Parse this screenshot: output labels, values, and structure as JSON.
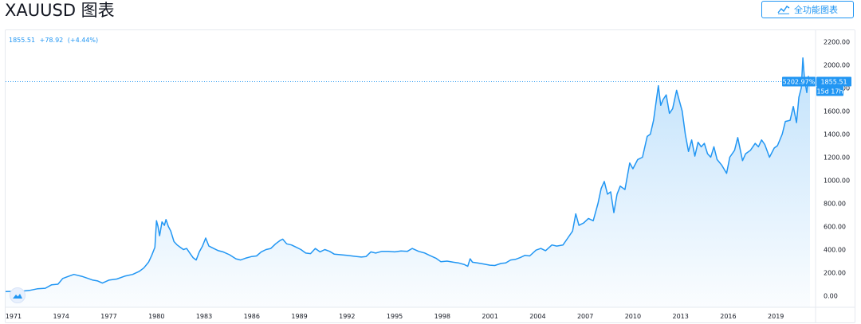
{
  "header": {
    "title": "XAUUSD 图表",
    "fullchart_label": "全功能图表",
    "fullchart_icon": "chart-line-icon"
  },
  "legend": {
    "price": "1855.51",
    "change": "+78.92",
    "change_pct": "(+4.44%)"
  },
  "price_tag": {
    "percent": "5202.97%",
    "price": "1855.51",
    "countdown": "15d 17h"
  },
  "colors": {
    "line": "#2196f3",
    "accent": "#2196f3",
    "axis_text": "#131722",
    "grid": "#e6e9ef"
  },
  "chart_data": {
    "type": "area",
    "series_name": "",
    "x_unit": "year",
    "xlim": [
      1970.5,
      2021.5
    ],
    "ylim": [
      -100,
      2300
    ],
    "x_ticks": [
      "1971",
      "1974",
      "1977",
      "1980",
      "1983",
      "1986",
      "1989",
      "1992",
      "1995",
      "1998",
      "2001",
      "2004",
      "2007",
      "2010",
      "2013",
      "2016",
      "2019"
    ],
    "y_ticks": [
      "2200.00",
      "2000.00",
      "1800.00",
      "1600.00",
      "1400.00",
      "1200.00",
      "1000.00",
      "800.00",
      "600.00",
      "400.00",
      "200.00",
      "0.00"
    ],
    "last_price": 1855.51,
    "points": [
      [
        1970.5,
        36
      ],
      [
        1971.0,
        38
      ],
      [
        1971.6,
        41
      ],
      [
        1972.0,
        46
      ],
      [
        1972.5,
        60
      ],
      [
        1973.0,
        65
      ],
      [
        1973.4,
        95
      ],
      [
        1973.8,
        100
      ],
      [
        1974.1,
        150
      ],
      [
        1974.4,
        165
      ],
      [
        1974.8,
        185
      ],
      [
        1975.0,
        178
      ],
      [
        1975.3,
        168
      ],
      [
        1975.7,
        150
      ],
      [
        1976.0,
        135
      ],
      [
        1976.3,
        128
      ],
      [
        1976.6,
        110
      ],
      [
        1977.0,
        135
      ],
      [
        1977.5,
        145
      ],
      [
        1978.0,
        170
      ],
      [
        1978.5,
        185
      ],
      [
        1978.9,
        210
      ],
      [
        1979.2,
        240
      ],
      [
        1979.5,
        290
      ],
      [
        1979.7,
        350
      ],
      [
        1979.9,
        420
      ],
      [
        1980.0,
        650
      ],
      [
        1980.1,
        600
      ],
      [
        1980.2,
        520
      ],
      [
        1980.35,
        640
      ],
      [
        1980.5,
        610
      ],
      [
        1980.6,
        660
      ],
      [
        1980.75,
        600
      ],
      [
        1980.9,
        560
      ],
      [
        1981.1,
        470
      ],
      [
        1981.3,
        440
      ],
      [
        1981.5,
        420
      ],
      [
        1981.7,
        400
      ],
      [
        1981.9,
        410
      ],
      [
        1982.1,
        370
      ],
      [
        1982.3,
        330
      ],
      [
        1982.5,
        310
      ],
      [
        1982.7,
        380
      ],
      [
        1982.9,
        430
      ],
      [
        1983.1,
        500
      ],
      [
        1983.3,
        430
      ],
      [
        1983.6,
        410
      ],
      [
        1983.9,
        390
      ],
      [
        1984.2,
        380
      ],
      [
        1984.6,
        355
      ],
      [
        1985.0,
        320
      ],
      [
        1985.3,
        310
      ],
      [
        1985.6,
        325
      ],
      [
        1986.0,
        340
      ],
      [
        1986.3,
        345
      ],
      [
        1986.6,
        380
      ],
      [
        1986.9,
        400
      ],
      [
        1987.2,
        410
      ],
      [
        1987.5,
        450
      ],
      [
        1987.8,
        480
      ],
      [
        1987.95,
        490
      ],
      [
        1988.2,
        450
      ],
      [
        1988.5,
        440
      ],
      [
        1988.8,
        420
      ],
      [
        1989.1,
        400
      ],
      [
        1989.4,
        370
      ],
      [
        1989.7,
        365
      ],
      [
        1990.0,
        410
      ],
      [
        1990.3,
        380
      ],
      [
        1990.6,
        400
      ],
      [
        1990.9,
        385
      ],
      [
        1991.2,
        360
      ],
      [
        1991.6,
        355
      ],
      [
        1992.0,
        350
      ],
      [
        1992.3,
        345
      ],
      [
        1992.6,
        340
      ],
      [
        1992.9,
        335
      ],
      [
        1993.2,
        340
      ],
      [
        1993.5,
        380
      ],
      [
        1993.8,
        370
      ],
      [
        1994.2,
        385
      ],
      [
        1994.6,
        385
      ],
      [
        1995.0,
        380
      ],
      [
        1995.4,
        388
      ],
      [
        1995.8,
        385
      ],
      [
        1996.1,
        410
      ],
      [
        1996.5,
        385
      ],
      [
        1996.9,
        370
      ],
      [
        1997.2,
        350
      ],
      [
        1997.6,
        325
      ],
      [
        1997.9,
        295
      ],
      [
        1998.3,
        300
      ],
      [
        1998.7,
        290
      ],
      [
        1999.0,
        285
      ],
      [
        1999.4,
        270
      ],
      [
        1999.6,
        255
      ],
      [
        1999.75,
        320
      ],
      [
        1999.9,
        290
      ],
      [
        2000.2,
        285
      ],
      [
        2000.6,
        275
      ],
      [
        2001.0,
        265
      ],
      [
        2001.3,
        262
      ],
      [
        2001.7,
        280
      ],
      [
        2002.0,
        285
      ],
      [
        2002.3,
        310
      ],
      [
        2002.6,
        315
      ],
      [
        2002.9,
        330
      ],
      [
        2003.2,
        350
      ],
      [
        2003.5,
        345
      ],
      [
        2003.9,
        395
      ],
      [
        2004.2,
        410
      ],
      [
        2004.5,
        390
      ],
      [
        2004.9,
        440
      ],
      [
        2005.2,
        430
      ],
      [
        2005.6,
        440
      ],
      [
        2005.9,
        500
      ],
      [
        2006.2,
        560
      ],
      [
        2006.4,
        710
      ],
      [
        2006.6,
        610
      ],
      [
        2006.9,
        630
      ],
      [
        2007.2,
        670
      ],
      [
        2007.5,
        650
      ],
      [
        2007.8,
        800
      ],
      [
        2008.0,
        930
      ],
      [
        2008.2,
        990
      ],
      [
        2008.4,
        880
      ],
      [
        2008.6,
        900
      ],
      [
        2008.8,
        720
      ],
      [
        2009.0,
        880
      ],
      [
        2009.2,
        950
      ],
      [
        2009.5,
        920
      ],
      [
        2009.8,
        1150
      ],
      [
        2010.0,
        1100
      ],
      [
        2010.3,
        1180
      ],
      [
        2010.6,
        1200
      ],
      [
        2010.9,
        1380
      ],
      [
        2011.1,
        1400
      ],
      [
        2011.3,
        1520
      ],
      [
        2011.6,
        1820
      ],
      [
        2011.75,
        1650
      ],
      [
        2011.9,
        1700
      ],
      [
        2012.1,
        1740
      ],
      [
        2012.3,
        1580
      ],
      [
        2012.5,
        1620
      ],
      [
        2012.75,
        1780
      ],
      [
        2012.9,
        1700
      ],
      [
        2013.1,
        1600
      ],
      [
        2013.3,
        1400
      ],
      [
        2013.5,
        1250
      ],
      [
        2013.7,
        1350
      ],
      [
        2013.9,
        1210
      ],
      [
        2014.1,
        1330
      ],
      [
        2014.3,
        1290
      ],
      [
        2014.5,
        1320
      ],
      [
        2014.7,
        1230
      ],
      [
        2014.9,
        1200
      ],
      [
        2015.1,
        1290
      ],
      [
        2015.3,
        1180
      ],
      [
        2015.6,
        1130
      ],
      [
        2015.9,
        1060
      ],
      [
        2016.1,
        1200
      ],
      [
        2016.4,
        1260
      ],
      [
        2016.6,
        1370
      ],
      [
        2016.9,
        1170
      ],
      [
        2017.1,
        1230
      ],
      [
        2017.4,
        1260
      ],
      [
        2017.7,
        1320
      ],
      [
        2017.9,
        1290
      ],
      [
        2018.1,
        1350
      ],
      [
        2018.3,
        1310
      ],
      [
        2018.6,
        1200
      ],
      [
        2018.9,
        1280
      ],
      [
        2019.1,
        1300
      ],
      [
        2019.4,
        1400
      ],
      [
        2019.6,
        1510
      ],
      [
        2019.9,
        1520
      ],
      [
        2020.1,
        1640
      ],
      [
        2020.3,
        1500
      ],
      [
        2020.45,
        1720
      ],
      [
        2020.6,
        1800
      ],
      [
        2020.7,
        2060
      ],
      [
        2020.8,
        1880
      ],
      [
        2020.95,
        1760
      ],
      [
        2021.05,
        1900
      ],
      [
        2021.15,
        1855.51
      ]
    ]
  }
}
